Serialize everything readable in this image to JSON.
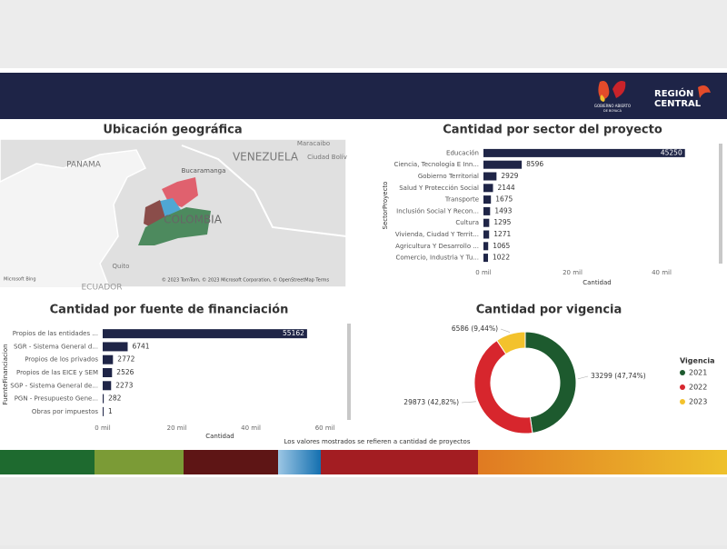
{
  "header": {
    "logo_left": "GOBIERNO ABIERTO",
    "logo_left_sub": "DE BOYACÁ",
    "logo_right_top": "REGIÓN",
    "logo_right_bottom": "CENTRAL"
  },
  "map": {
    "title": "Ubicación geográfica",
    "labels": [
      "PANAMA",
      "VENEZUELA",
      "Maracaibo",
      "Ciudad Bolív",
      "Bucaramanga",
      "COLOMBIA",
      "Quito",
      "ECUADOR"
    ],
    "attribution": "© 2023 TomTom, © 2023 Microsoft Corporation, © OpenStreetMap  Terms",
    "brand": "Microsoft Bing"
  },
  "chart_data": [
    {
      "type": "bar",
      "orientation": "horizontal",
      "title": "Cantidad por sector del proyecto",
      "x_label": "Cantidad",
      "y_label": "SectorProyecto",
      "color": "#1f2547",
      "categories": [
        "Educación",
        "Ciencia, Tecnología E Inn...",
        "Gobierno Territorial",
        "Salud Y Protección Social",
        "Transporte",
        "Inclusión Social Y Recon...",
        "Cultura",
        "Vivienda, Ciudad Y Territ...",
        "Agricultura Y Desarrollo ...",
        "Comercio, Industria Y Tu..."
      ],
      "values": [
        45250,
        8596,
        2929,
        2144,
        1675,
        1493,
        1295,
        1271,
        1065,
        1022
      ],
      "xlim": [
        0,
        50000
      ],
      "xticks": [
        {
          "value": 0,
          "label": "0 mil"
        },
        {
          "value": 20000,
          "label": "20 mil"
        },
        {
          "value": 40000,
          "label": "40 mil"
        }
      ]
    },
    {
      "type": "bar",
      "orientation": "horizontal",
      "title": "Cantidad por fuente de financiación",
      "x_label": "Cantidad",
      "y_label": "FuenteFinanciacion",
      "color": "#1f2547",
      "categories": [
        "Propios de las entidades ...",
        "SGR - Sistema General d...",
        "Propios de los privados",
        "Propios de las EICE y SEM",
        "SGP - Sistema General de...",
        "PGN - Presupuesto Gene...",
        "Obras por impuestos"
      ],
      "values": [
        55162,
        6741,
        2772,
        2526,
        2273,
        282,
        1
      ],
      "xlim": [
        0,
        65000
      ],
      "xticks": [
        {
          "value": 0,
          "label": "0 mil"
        },
        {
          "value": 20000,
          "label": "20 mil"
        },
        {
          "value": 40000,
          "label": "40 mil"
        },
        {
          "value": 60000,
          "label": "60 mil"
        }
      ]
    },
    {
      "type": "pie",
      "donut": true,
      "title": "Cantidad por vigencia",
      "legend_title": "Vigencia",
      "categories": [
        "2021",
        "2022",
        "2023"
      ],
      "values": [
        33299,
        29873,
        6586
      ],
      "value_labels": [
        "33299 (47,74%)",
        "29873 (42,82%)",
        "6586 (9,44%)"
      ],
      "colors": [
        "#1d5a2e",
        "#d7262d",
        "#f3c22c"
      ]
    }
  ],
  "footnote": "Los valores mostrados se refieren a cantidad de proyectos"
}
